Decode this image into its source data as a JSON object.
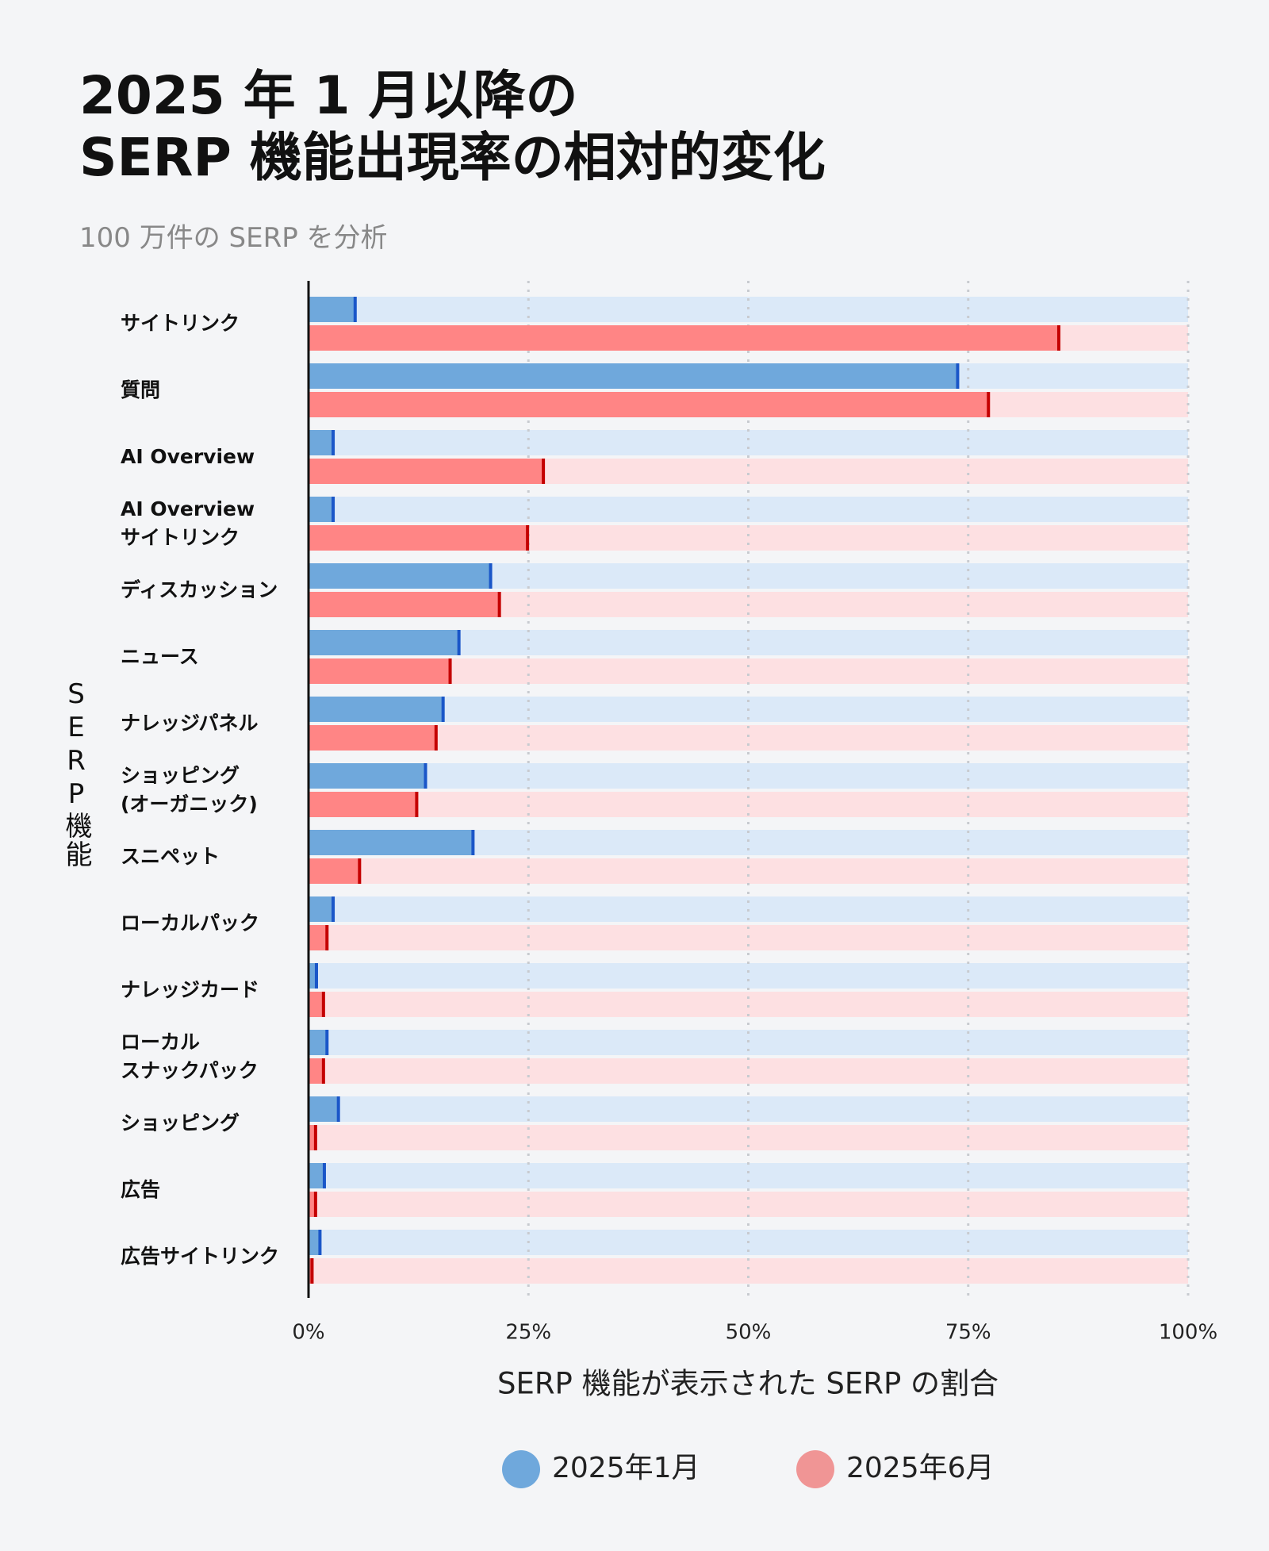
{
  "chart_data": {
    "type": "bar",
    "orientation": "horizontal",
    "title": "2025 年 1 月以降の\nSERP 機能出現率の相対的変化",
    "subtitle": "100 万件の SERP を分析",
    "x_label": "SERP 機能が表示された SERP の割合",
    "y_label": "SERP機能",
    "categories": [
      "サイトリンク",
      "質問",
      "AI Overview",
      "AI Overview\nサイトリンク",
      "ディスカッション",
      "ニュース",
      "ナレッジパネル",
      "ショッピング\n(オーガニック)",
      "スニペット",
      "ローカルパック",
      "ナレッジカード",
      "ローカル\nスナックパック",
      "ショッピング",
      "広告",
      "広告サイトリンク"
    ],
    "series": [
      {
        "name": "2025年1月",
        "color": "#6fa8dc",
        "values": [
          5.3,
          73.8,
          2.8,
          2.8,
          20.7,
          17.1,
          15.3,
          13.3,
          18.7,
          2.8,
          0.9,
          2.1,
          3.4,
          1.8,
          1.3
        ]
      },
      {
        "name": "2025年6月",
        "color": "#ff8585",
        "values": [
          85.3,
          77.3,
          26.7,
          24.9,
          21.7,
          16.1,
          14.5,
          12.3,
          5.8,
          2.1,
          1.7,
          1.7,
          0.8,
          0.8,
          0.4
        ]
      }
    ],
    "xlim": [
      0,
      100
    ],
    "xticks": [
      {
        "value": 0,
        "label": "0%"
      },
      {
        "value": 25,
        "label": "25%"
      },
      {
        "value": 50,
        "label": "50%"
      },
      {
        "value": 75,
        "label": "75%"
      },
      {
        "value": 100,
        "label": "100%"
      }
    ],
    "grid": true
  }
}
